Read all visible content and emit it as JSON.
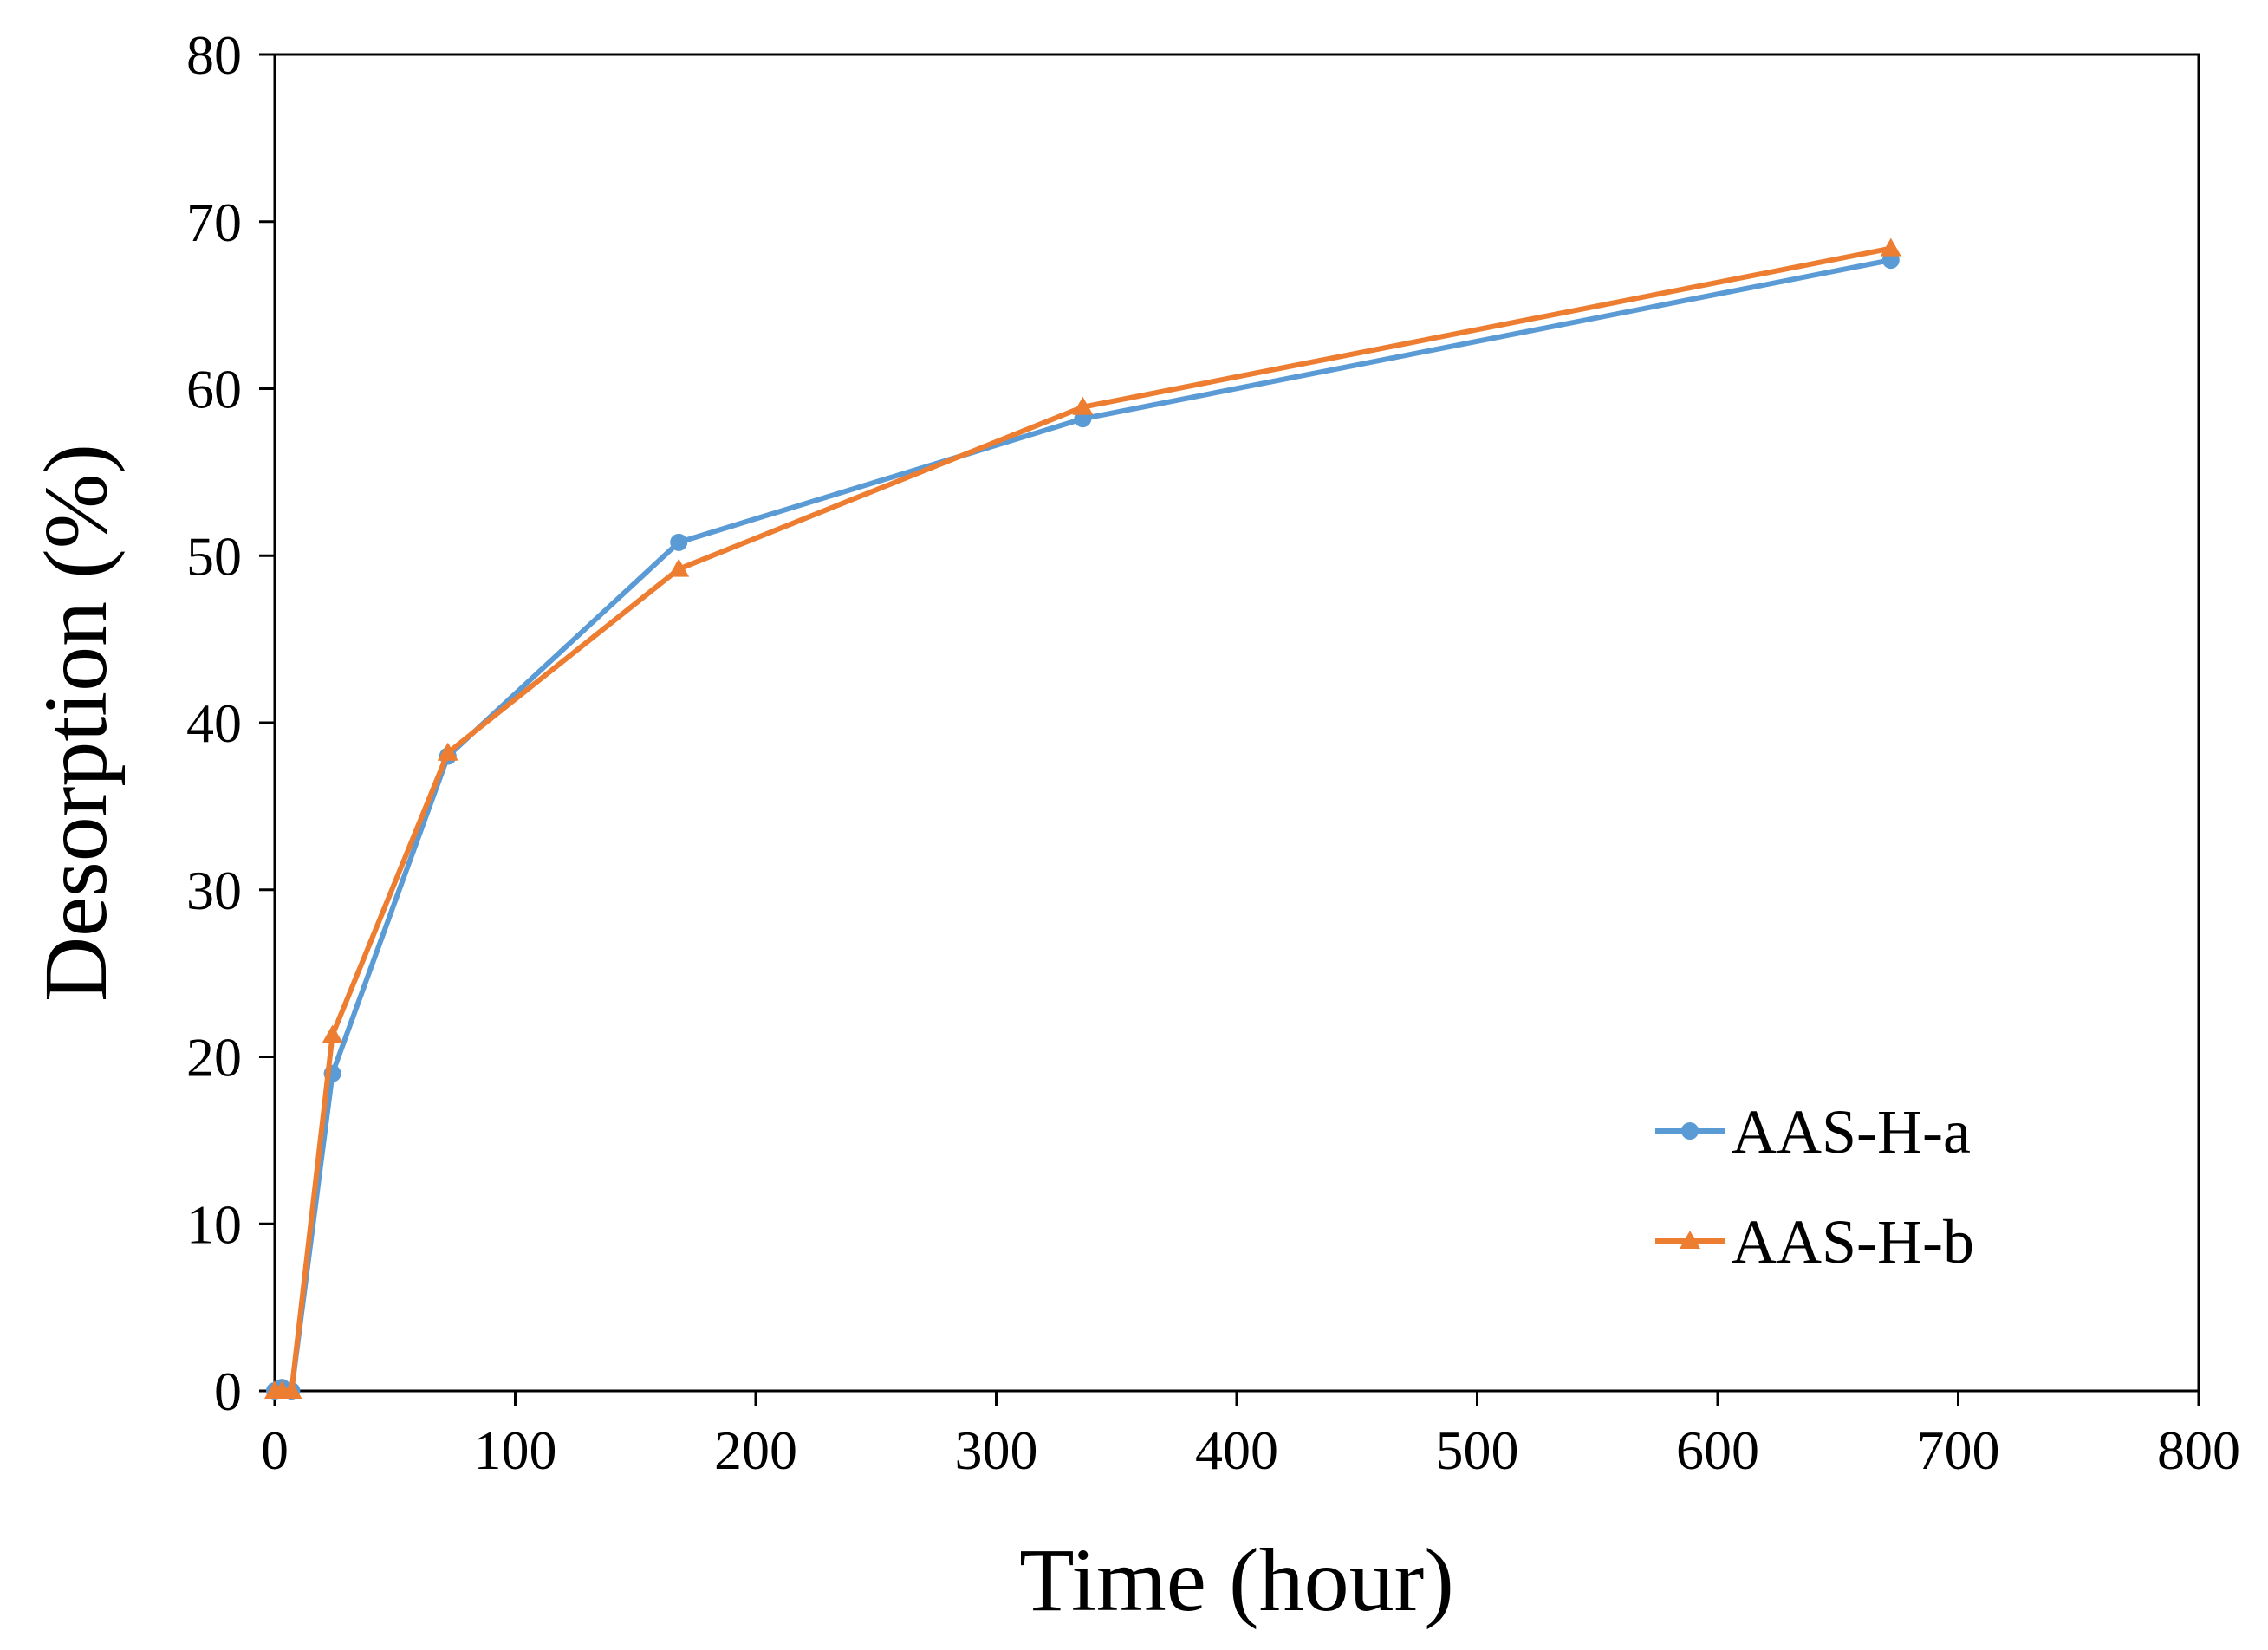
{
  "chart_data": {
    "type": "line",
    "title": "",
    "xlabel": "Time (hour)",
    "ylabel": "Desorption (%)",
    "xlim": [
      0,
      800
    ],
    "ylim": [
      0,
      80
    ],
    "xticks": [
      0,
      100,
      200,
      300,
      400,
      500,
      600,
      700,
      800
    ],
    "yticks": [
      0,
      10,
      20,
      30,
      40,
      50,
      60,
      70,
      80
    ],
    "grid": false,
    "legend_position": "bottom-right",
    "series": [
      {
        "name": "AAS-H-a",
        "color": "#5b9bd5",
        "marker": "circle",
        "x": [
          0,
          3,
          7,
          24,
          72,
          168,
          336,
          672
        ],
        "y": [
          0,
          0.2,
          0,
          19,
          38,
          50.8,
          58.2,
          67.7
        ]
      },
      {
        "name": "AAS-H-b",
        "color": "#ed7d31",
        "marker": "triangle",
        "x": [
          0,
          3,
          7,
          24,
          72,
          168,
          336,
          672
        ],
        "y": [
          0,
          0,
          0,
          21.3,
          38.2,
          49.2,
          58.9,
          68.4
        ]
      }
    ]
  }
}
